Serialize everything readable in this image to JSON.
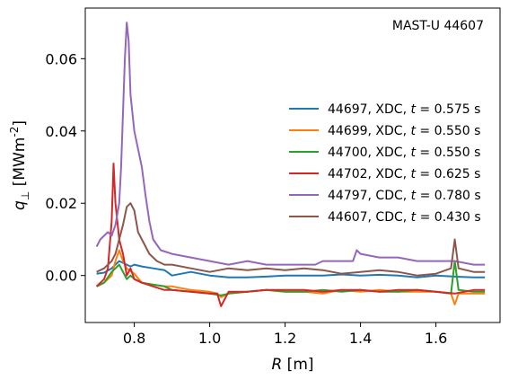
{
  "chart_data": {
    "type": "line",
    "title": "",
    "annotation": "MAST-U 44607",
    "xlabel": "R [m]",
    "ylabel": "q_⊥ [MWm^-2]",
    "xlim": [
      0.67,
      1.77
    ],
    "ylim": [
      -0.013,
      0.074
    ],
    "xticks": [
      0.8,
      1.0,
      1.2,
      1.4,
      1.6
    ],
    "xtick_labels": [
      "0.8",
      "1.0",
      "1.2",
      "1.4",
      "1.6"
    ],
    "yticks": [
      0.0,
      0.02,
      0.04,
      0.06
    ],
    "ytick_labels": [
      "0.00",
      "0.02",
      "0.04",
      "0.06"
    ],
    "grid": false,
    "legend_position": "center-right",
    "series": [
      {
        "name": "44697, XDC, t = 0.575 s",
        "color": "#1f77b4",
        "x": [
          0.7,
          0.72,
          0.74,
          0.75,
          0.76,
          0.77,
          0.78,
          0.79,
          0.8,
          0.82,
          0.85,
          0.88,
          0.9,
          0.95,
          1.0,
          1.05,
          1.1,
          1.15,
          1.2,
          1.25,
          1.3,
          1.35,
          1.4,
          1.45,
          1.5,
          1.55,
          1.6,
          1.65,
          1.7,
          1.73
        ],
        "y": [
          0.0005,
          0.0008,
          0.002,
          0.003,
          0.004,
          0.0035,
          0.003,
          0.0025,
          0.003,
          0.0025,
          0.002,
          0.0015,
          0.0,
          0.001,
          0.0,
          -0.0005,
          -0.0005,
          -0.0003,
          0.0,
          0.0,
          0.0,
          0.0003,
          0.0,
          0.0002,
          0.0,
          -0.0005,
          0.0,
          -0.0003,
          -0.0005,
          -0.0005
        ]
      },
      {
        "name": "44699, XDC, t = 0.550 s",
        "color": "#ff7f0e",
        "x": [
          0.7,
          0.72,
          0.74,
          0.75,
          0.76,
          0.77,
          0.78,
          0.8,
          0.82,
          0.85,
          0.88,
          0.9,
          0.95,
          1.0,
          1.02,
          1.03,
          1.05,
          1.1,
          1.15,
          1.2,
          1.25,
          1.3,
          1.35,
          1.4,
          1.45,
          1.5,
          1.55,
          1.6,
          1.64,
          1.65,
          1.66,
          1.7,
          1.73
        ],
        "y": [
          -0.003,
          -0.002,
          0.0,
          0.004,
          0.007,
          0.004,
          0.002,
          0.0005,
          -0.002,
          -0.0025,
          -0.003,
          -0.003,
          -0.004,
          -0.0045,
          -0.005,
          -0.006,
          -0.005,
          -0.0045,
          -0.004,
          -0.0045,
          -0.0045,
          -0.005,
          -0.004,
          -0.0045,
          -0.004,
          -0.0045,
          -0.0045,
          -0.0045,
          -0.005,
          -0.008,
          -0.005,
          -0.005,
          -0.005
        ]
      },
      {
        "name": "44700, XDC, t = 0.550 s",
        "color": "#2ca02c",
        "x": [
          0.7,
          0.72,
          0.74,
          0.75,
          0.76,
          0.77,
          0.78,
          0.79,
          0.8,
          0.82,
          0.85,
          0.88,
          0.9,
          0.95,
          1.0,
          1.03,
          1.05,
          1.1,
          1.15,
          1.2,
          1.25,
          1.3,
          1.35,
          1.4,
          1.45,
          1.5,
          1.55,
          1.6,
          1.64,
          1.65,
          1.66,
          1.7,
          1.73
        ],
        "y": [
          -0.003,
          -0.002,
          0.001,
          0.002,
          0.003,
          0.001,
          -0.001,
          0.0,
          -0.001,
          -0.002,
          -0.0025,
          -0.003,
          -0.004,
          -0.0045,
          -0.005,
          -0.0055,
          -0.005,
          -0.0045,
          -0.004,
          -0.0045,
          -0.0045,
          -0.004,
          -0.0045,
          -0.004,
          -0.0045,
          -0.0045,
          -0.004,
          -0.0045,
          -0.005,
          0.004,
          -0.004,
          -0.0045,
          -0.0045
        ]
      },
      {
        "name": "44702, XDC, t = 0.625 s",
        "color": "#d62728",
        "x": [
          0.7,
          0.72,
          0.73,
          0.74,
          0.745,
          0.75,
          0.76,
          0.77,
          0.78,
          0.79,
          0.8,
          0.82,
          0.85,
          0.88,
          0.9,
          0.95,
          1.0,
          1.02,
          1.03,
          1.05,
          1.1,
          1.15,
          1.2,
          1.25,
          1.3,
          1.35,
          1.4,
          1.45,
          1.5,
          1.55,
          1.6,
          1.65,
          1.7,
          1.73
        ],
        "y": [
          -0.003,
          -0.001,
          0.002,
          0.015,
          0.031,
          0.02,
          0.01,
          0.006,
          0.0,
          0.002,
          -0.001,
          -0.002,
          -0.003,
          -0.004,
          -0.004,
          -0.0045,
          -0.005,
          -0.005,
          -0.0085,
          -0.0045,
          -0.0045,
          -0.004,
          -0.004,
          -0.004,
          -0.0045,
          -0.004,
          -0.004,
          -0.0045,
          -0.004,
          -0.004,
          -0.0045,
          -0.005,
          -0.004,
          -0.004
        ]
      },
      {
        "name": "44797, CDC, t = 0.780 s",
        "color": "#9467bd",
        "x": [
          0.7,
          0.71,
          0.72,
          0.73,
          0.74,
          0.75,
          0.76,
          0.765,
          0.77,
          0.775,
          0.78,
          0.785,
          0.79,
          0.8,
          0.81,
          0.82,
          0.83,
          0.84,
          0.85,
          0.87,
          0.9,
          0.95,
          1.0,
          1.05,
          1.1,
          1.15,
          1.2,
          1.25,
          1.28,
          1.3,
          1.35,
          1.38,
          1.39,
          1.4,
          1.45,
          1.5,
          1.55,
          1.6,
          1.65,
          1.7,
          1.73
        ],
        "y": [
          0.008,
          0.01,
          0.011,
          0.012,
          0.011,
          0.014,
          0.02,
          0.03,
          0.045,
          0.06,
          0.07,
          0.065,
          0.05,
          0.04,
          0.035,
          0.03,
          0.022,
          0.015,
          0.01,
          0.007,
          0.006,
          0.005,
          0.004,
          0.003,
          0.004,
          0.003,
          0.003,
          0.003,
          0.003,
          0.004,
          0.004,
          0.004,
          0.007,
          0.006,
          0.005,
          0.005,
          0.004,
          0.004,
          0.004,
          0.003,
          0.003
        ]
      },
      {
        "name": "44607, CDC, t = 0.430 s",
        "color": "#8c564b",
        "x": [
          0.7,
          0.72,
          0.74,
          0.75,
          0.76,
          0.77,
          0.78,
          0.79,
          0.8,
          0.81,
          0.82,
          0.84,
          0.86,
          0.88,
          0.9,
          0.95,
          1.0,
          1.05,
          1.1,
          1.15,
          1.2,
          1.25,
          1.3,
          1.35,
          1.4,
          1.45,
          1.5,
          1.55,
          1.6,
          1.64,
          1.65,
          1.66,
          1.7,
          1.73
        ],
        "y": [
          0.001,
          0.002,
          0.004,
          0.006,
          0.01,
          0.014,
          0.019,
          0.02,
          0.018,
          0.012,
          0.01,
          0.006,
          0.004,
          0.003,
          0.003,
          0.002,
          0.001,
          0.002,
          0.0015,
          0.002,
          0.0015,
          0.002,
          0.0015,
          0.0005,
          0.001,
          0.0015,
          0.001,
          0.0,
          0.0005,
          0.002,
          0.01,
          0.002,
          0.001,
          0.001
        ]
      }
    ]
  }
}
